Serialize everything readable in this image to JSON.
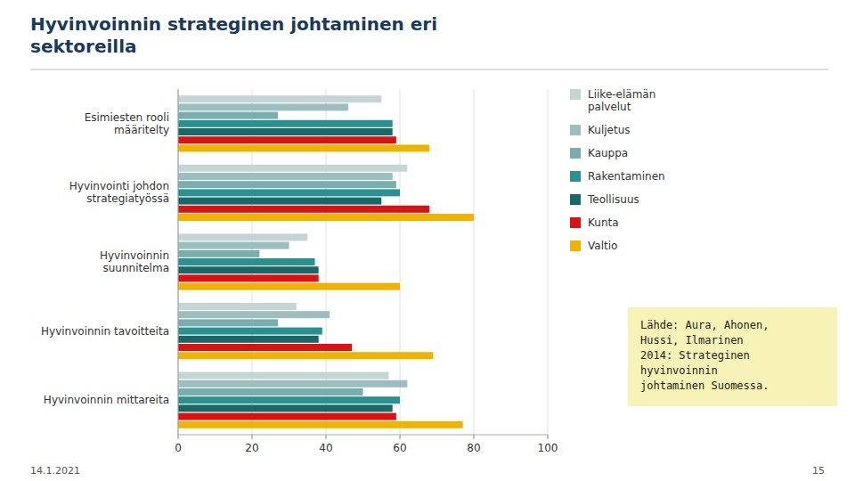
{
  "chart_data": {
    "type": "bar",
    "orientation": "horizontal",
    "title": "Hyvinvoinnin strateginen johtaminen eri\nsektoreilla",
    "categories": [
      "Esimiesten rooli\nmääritelty",
      "Hyvinvointi johdon\nstrategiatyössä",
      "Hyvinvoinnin\nsuunnitelma",
      "Hyvinvoinnin tavoitteita",
      "Hyvinvoinnin mittareita"
    ],
    "series": [
      {
        "name": "Liike-elämän\npalvelut",
        "color": "#c5d5d4",
        "values": [
          55,
          62,
          35,
          32,
          57
        ]
      },
      {
        "name": "Kuljetus",
        "color": "#9bbebe",
        "values": [
          46,
          58,
          30,
          41,
          62
        ]
      },
      {
        "name": "Kauppa",
        "color": "#78aeae",
        "values": [
          27,
          59,
          22,
          27,
          50
        ]
      },
      {
        "name": "Rakentaminen",
        "color": "#2a9090",
        "values": [
          58,
          60,
          37,
          39,
          60
        ]
      },
      {
        "name": "Teollisuus",
        "color": "#186868",
        "values": [
          58,
          55,
          38,
          38,
          58
        ]
      },
      {
        "name": "Kunta",
        "color": "#dd1111",
        "values": [
          59,
          68,
          38,
          47,
          59
        ]
      },
      {
        "name": "Valtio",
        "color": "#f0b400",
        "values": [
          68,
          80,
          60,
          69,
          77
        ]
      }
    ],
    "xlim": [
      0,
      100
    ],
    "xticks": [
      0,
      20,
      40,
      60,
      80,
      100
    ],
    "grid": true,
    "legend": "right",
    "annotations": [
      "Lähde: Aura, Ahonen,\nHussi, Ilmarinen\n2014: Strateginen\nhyvinvoinnin\njohtaminen Suomessa.",
      "14.1.2021",
      "15"
    ]
  }
}
